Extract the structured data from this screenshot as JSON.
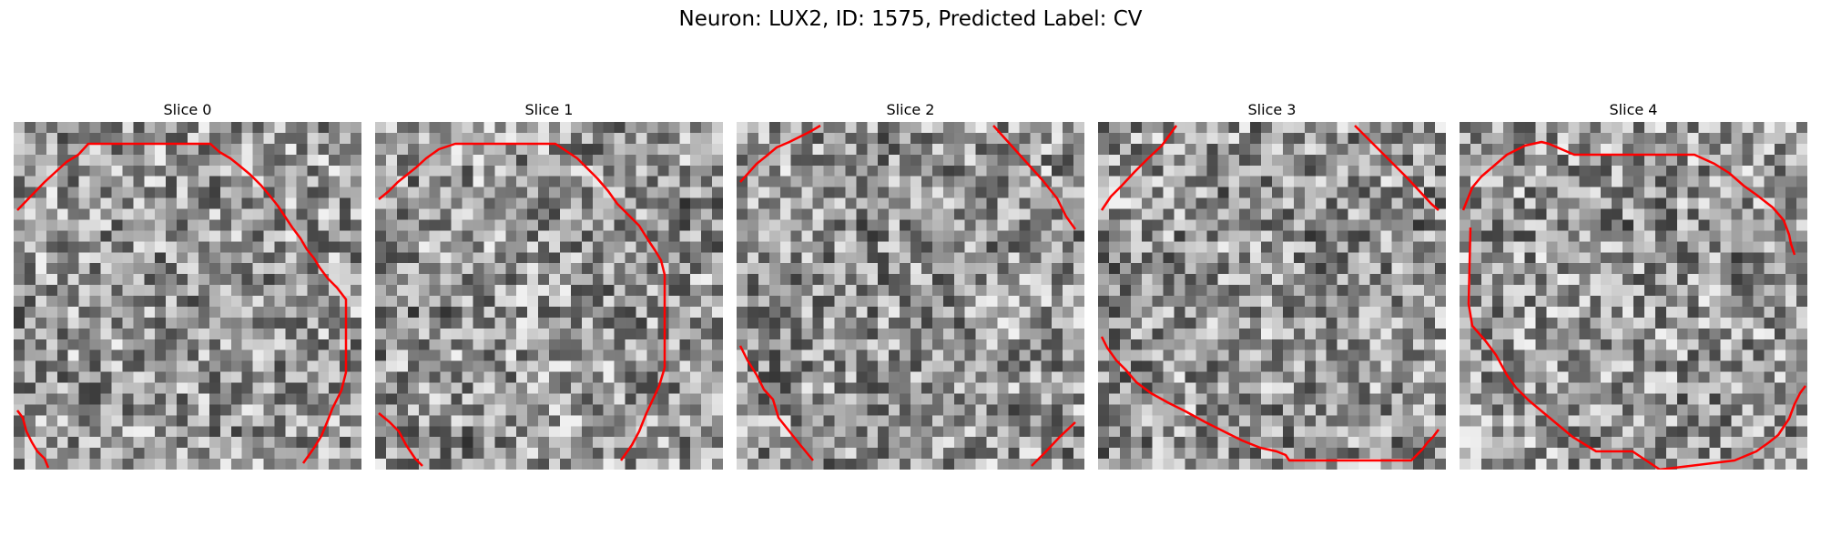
{
  "figure": {
    "title": "Neuron: LUX2, ID: 1575, Predicted Label: CV"
  },
  "panels": [
    {
      "title": "Slice 0"
    },
    {
      "title": "Slice 1"
    },
    {
      "title": "Slice 2"
    },
    {
      "title": "Slice 3"
    },
    {
      "title": "Slice 4"
    }
  ],
  "colors": {
    "contour": "#ff0000",
    "background": "#ffffff",
    "colormap": "grayscale"
  }
}
